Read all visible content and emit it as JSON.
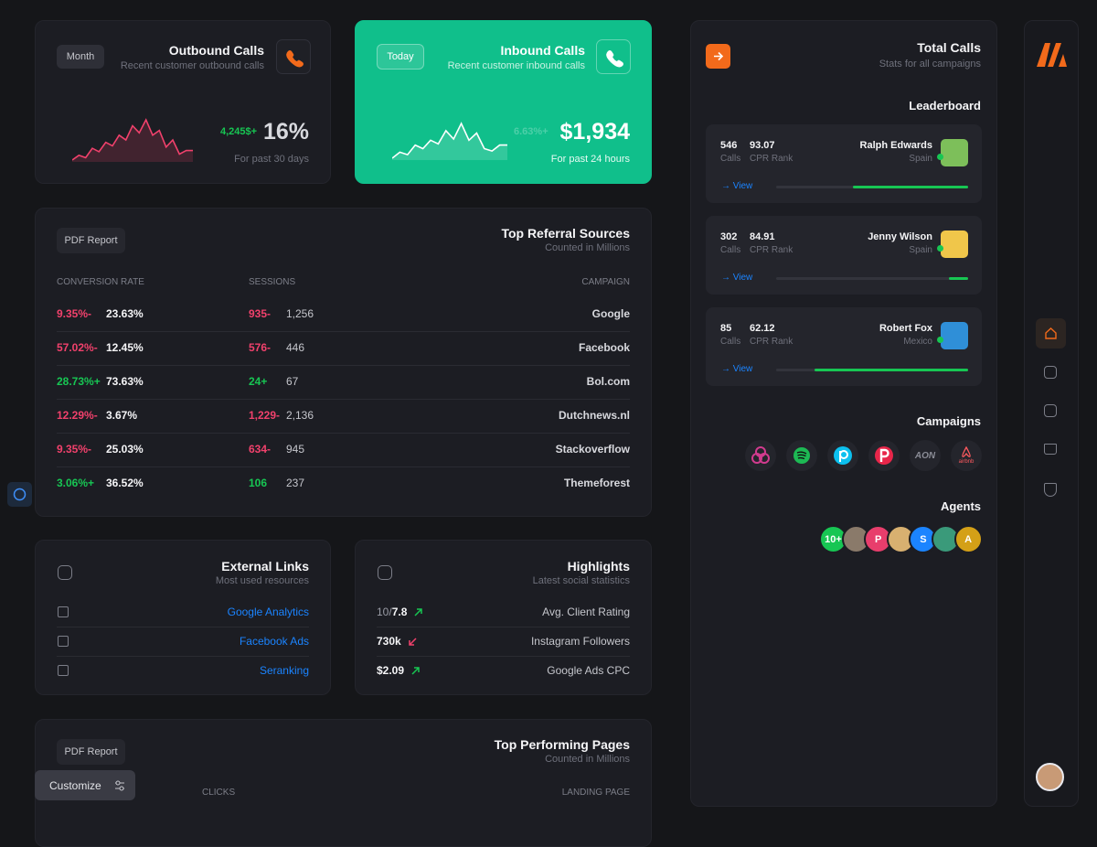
{
  "outbound": {
    "badge": "Month",
    "title": "Outbound Calls",
    "subtitle": "Recent customer outbound calls",
    "change": "4,245$+",
    "value": "16%",
    "period": "For past 30 days",
    "trend": [
      20,
      24,
      22,
      30,
      27,
      35,
      32,
      41,
      37,
      49,
      43,
      54,
      41,
      45,
      31,
      37,
      25,
      28,
      28
    ]
  },
  "inbound": {
    "badge": "Today",
    "title": "Inbound Calls",
    "subtitle": "Recent customer inbound calls",
    "change": "6.63%+",
    "value": "$1,934",
    "period": "For past 24 hours",
    "trend": [
      10,
      15,
      13,
      21,
      18,
      25,
      22,
      33,
      26,
      39,
      25,
      31,
      18,
      16,
      21,
      21
    ]
  },
  "referral": {
    "button": "PDF Report",
    "title": "Top Referral Sources",
    "subtitle": "Counted in Millions",
    "headers": [
      "CONVERSION RATE",
      "SESSIONS",
      "CAMPAIGN"
    ],
    "rows": [
      {
        "rate_change": "9.35%-",
        "rate": "23.63%",
        "sessions_change": "935-",
        "sessions": "1,256",
        "campaign": "Google",
        "trend": "down"
      },
      {
        "rate_change": "57.02%-",
        "rate": "12.45%",
        "sessions_change": "576-",
        "sessions": "446",
        "campaign": "Facebook",
        "trend": "down"
      },
      {
        "rate_change": "28.73%+",
        "rate": "73.63%",
        "sessions_change": "24+",
        "sessions": "67",
        "campaign": "Bol.com",
        "trend": "up"
      },
      {
        "rate_change": "12.29%-",
        "rate": "3.67%",
        "sessions_change": "1,229-",
        "sessions": "2,136",
        "campaign": "Dutchnews.nl",
        "trend": "down"
      },
      {
        "rate_change": "9.35%-",
        "rate": "25.03%",
        "sessions_change": "634-",
        "sessions": "945",
        "campaign": "Stackoverflow",
        "trend": "down"
      },
      {
        "rate_change": "3.06%+",
        "rate": "36.52%",
        "sessions_change": "106",
        "sessions": "237",
        "campaign": "Themeforest",
        "trend": "up"
      }
    ]
  },
  "external": {
    "title": "External Links",
    "subtitle": "Most used resources",
    "links": [
      "Google Analytics",
      "Facebook Ads",
      "Seranking"
    ]
  },
  "highlights": {
    "title": "Highlights",
    "subtitle": "Latest social statistics",
    "items": [
      {
        "prefix": "10/",
        "value": "7.8",
        "label": "Avg. Client Rating",
        "trend": "up"
      },
      {
        "value": "730k",
        "label": "Instagram Followers",
        "trend": "down"
      },
      {
        "value": "$2.09",
        "label": "Google Ads CPC",
        "trend": "up"
      }
    ]
  },
  "performing": {
    "button": "PDF Report",
    "title": "Top Performing Pages",
    "subtitle": "Counted in Millions",
    "headers": [
      "CLICKS",
      "LANDING PAGE"
    ]
  },
  "customize": "Customize",
  "total": {
    "title": "Total Calls",
    "subtitle": "Stats for all campaigns",
    "leaderboard_title": "Leaderboard",
    "leaders": [
      {
        "calls": "546",
        "calls_label": "Calls",
        "rank": "93.07",
        "rank_label": "CPR Rank",
        "name": "Ralph Edwards",
        "country": "Spain",
        "link": "→ View",
        "progress": 60
      },
      {
        "calls": "302",
        "calls_label": "Calls",
        "rank": "84.91",
        "rank_label": "CPR Rank",
        "name": "Jenny Wilson",
        "country": "Spain",
        "link": "→ View",
        "progress": 10
      },
      {
        "calls": "85",
        "calls_label": "Calls",
        "rank": "62.12",
        "rank_label": "CPR Rank",
        "name": "Robert Fox",
        "country": "Mexico",
        "link": "→ View",
        "progress": 80
      }
    ],
    "campaigns_title": "Campaigns",
    "campaign_logos": [
      "AON",
      "airbnb"
    ],
    "agents_title": "Agents",
    "agents": [
      {
        "label": "10+",
        "color": "#17c653"
      },
      {
        "color": "#8a7a6a"
      },
      {
        "label": "P",
        "color": "#e83e6c"
      },
      {
        "color": "#d8b070"
      },
      {
        "label": "S",
        "color": "#1b84ff"
      },
      {
        "color": "#3a9a7a"
      },
      {
        "label": "A",
        "color": "#d4a017"
      }
    ]
  }
}
